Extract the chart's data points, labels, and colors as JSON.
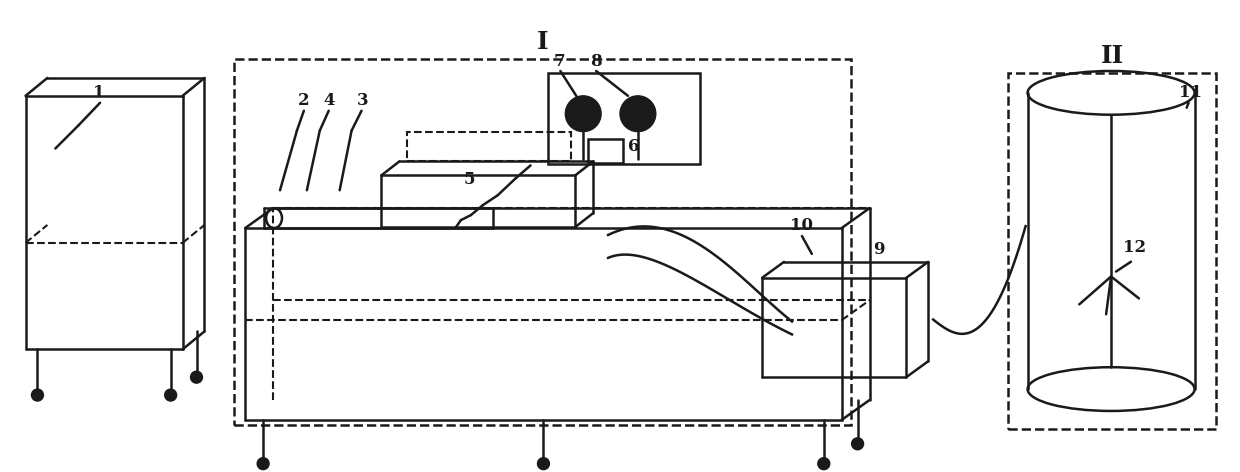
{
  "bg_color": "#ffffff",
  "line_color": "#1a1a1a",
  "label_fontsize": 12,
  "roman_fontsize": 18,
  "fig_width": 12.4,
  "fig_height": 4.72,
  "dpi": 100
}
